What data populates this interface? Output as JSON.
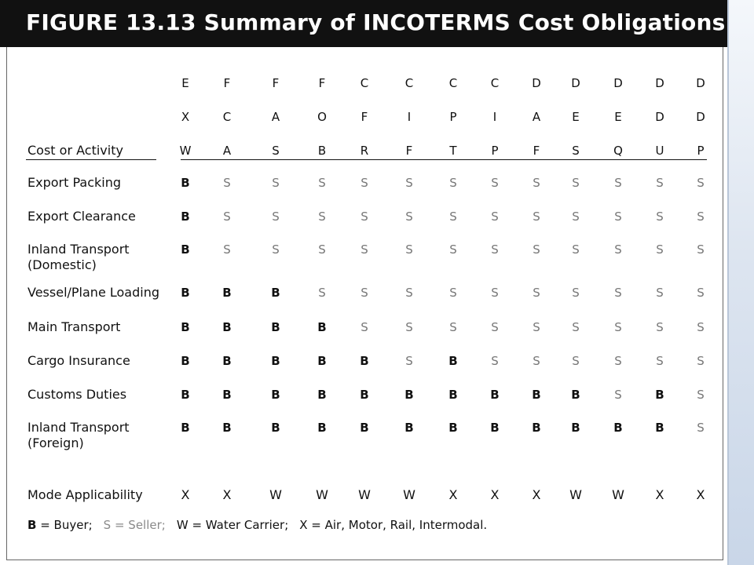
{
  "title": "FIGURE 13.13  Summary of INCOTERMS Cost Obligations",
  "header_label": "Cost or Activity",
  "terms": [
    {
      "l1": "E",
      "l2": "X",
      "l3": "W"
    },
    {
      "l1": "F",
      "l2": "C",
      "l3": "A"
    },
    {
      "l1": "F",
      "l2": "A",
      "l3": "S"
    },
    {
      "l1": "F",
      "l2": "O",
      "l3": "B"
    },
    {
      "l1": "C",
      "l2": "F",
      "l3": "R"
    },
    {
      "l1": "C",
      "l2": "I",
      "l3": "F"
    },
    {
      "l1": "C",
      "l2": "P",
      "l3": "T"
    },
    {
      "l1": "C",
      "l2": "I",
      "l3": "P"
    },
    {
      "l1": "D",
      "l2": "A",
      "l3": "F"
    },
    {
      "l1": "D",
      "l2": "E",
      "l3": "S"
    },
    {
      "l1": "D",
      "l2": "E",
      "l3": "Q"
    },
    {
      "l1": "D",
      "l2": "D",
      "l3": "U"
    },
    {
      "l1": "D",
      "l2": "D",
      "l3": "P"
    }
  ],
  "rows": [
    {
      "label1": "Export Packing",
      "label2": "",
      "values": [
        "B",
        "S",
        "S",
        "S",
        "S",
        "S",
        "S",
        "S",
        "S",
        "S",
        "S",
        "S",
        "S"
      ]
    },
    {
      "label1": "Export Clearance",
      "label2": "",
      "values": [
        "B",
        "S",
        "S",
        "S",
        "S",
        "S",
        "S",
        "S",
        "S",
        "S",
        "S",
        "S",
        "S"
      ]
    },
    {
      "label1": "Inland Transport",
      "label2": "(Domestic)",
      "values": [
        "B",
        "S",
        "S",
        "S",
        "S",
        "S",
        "S",
        "S",
        "S",
        "S",
        "S",
        "S",
        "S"
      ]
    },
    {
      "label1": "Vessel/Plane Loading",
      "label2": "",
      "values": [
        "B",
        "B",
        "B",
        "S",
        "S",
        "S",
        "S",
        "S",
        "S",
        "S",
        "S",
        "S",
        "S"
      ]
    },
    {
      "label1": "Main Transport",
      "label2": "",
      "values": [
        "B",
        "B",
        "B",
        "B",
        "S",
        "S",
        "S",
        "S",
        "S",
        "S",
        "S",
        "S",
        "S"
      ]
    },
    {
      "label1": "Cargo Insurance",
      "label2": "",
      "values": [
        "B",
        "B",
        "B",
        "B",
        "B",
        "S",
        "B",
        "S",
        "S",
        "S",
        "S",
        "S",
        "S"
      ]
    },
    {
      "label1": "Customs Duties",
      "label2": "",
      "values": [
        "B",
        "B",
        "B",
        "B",
        "B",
        "B",
        "B",
        "B",
        "B",
        "B",
        "S",
        "B",
        "S"
      ]
    },
    {
      "label1": "Inland Transport",
      "label2": "(Foreign)",
      "values": [
        "B",
        "B",
        "B",
        "B",
        "B",
        "B",
        "B",
        "B",
        "B",
        "B",
        "B",
        "B",
        "S"
      ]
    }
  ],
  "mode_row": {
    "label": "Mode Applicability",
    "values": [
      "X",
      "X",
      "W",
      "W",
      "W",
      "W",
      "X",
      "X",
      "X",
      "W",
      "W",
      "X",
      "X"
    ]
  },
  "legend": {
    "b_key": "B",
    "b_text": " = Buyer;",
    "s_key": "S = Seller;",
    "w_text": "W = Water Carrier;",
    "x_text": "X = Air, Motor, Rail, Intermodal."
  }
}
